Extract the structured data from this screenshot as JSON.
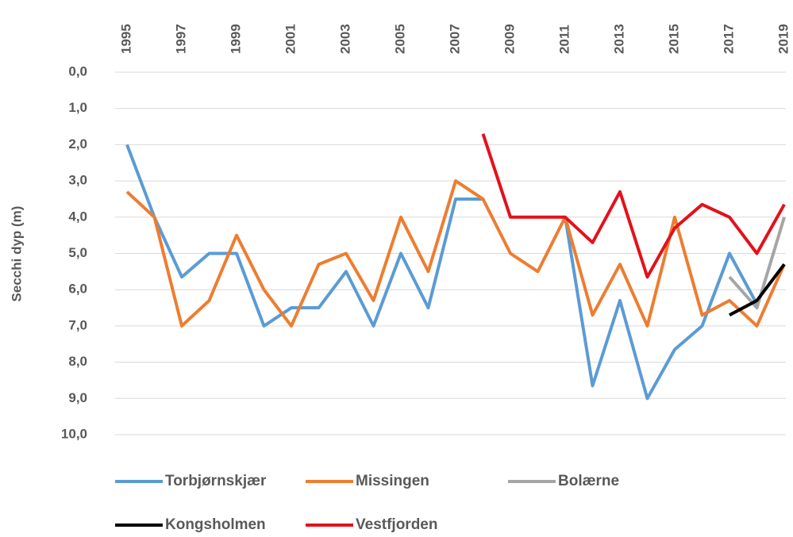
{
  "chart_data": {
    "type": "line",
    "y_label": "Secchi dyp (m)",
    "x": [
      1995,
      1996,
      1997,
      1998,
      1999,
      2000,
      2001,
      2002,
      2003,
      2004,
      2005,
      2006,
      2007,
      2008,
      2009,
      2010,
      2011,
      2012,
      2013,
      2014,
      2015,
      2016,
      2017,
      2018,
      2019
    ],
    "xlim": [
      1995,
      2019
    ],
    "xticks": [
      1995,
      1997,
      1999,
      2001,
      2003,
      2005,
      2007,
      2009,
      2011,
      2013,
      2015,
      2017,
      2019
    ],
    "ylim": [
      10,
      0
    ],
    "yticks": [
      {
        "value": 0,
        "label": "0,0"
      },
      {
        "value": 1,
        "label": "1,0"
      },
      {
        "value": 2,
        "label": "2,0"
      },
      {
        "value": 3,
        "label": "3,0"
      },
      {
        "value": 4,
        "label": "4,0"
      },
      {
        "value": 5,
        "label": "5,0"
      },
      {
        "value": 6,
        "label": "6,0"
      },
      {
        "value": 7,
        "label": "7,0"
      },
      {
        "value": 8,
        "label": "8,0"
      },
      {
        "value": 9,
        "label": "9,0"
      },
      {
        "value": 10,
        "label": "10,0"
      }
    ],
    "grid": true,
    "series": [
      {
        "name": "Torbjørnskjær",
        "color": "#5b9bd5",
        "values": [
          2.0,
          4.0,
          5.65,
          5.0,
          5.0,
          7.0,
          6.5,
          6.5,
          5.5,
          7.0,
          5.0,
          6.5,
          3.5,
          3.5,
          null,
          null,
          4.0,
          8.65,
          6.3,
          9.0,
          7.65,
          7.0,
          5.0,
          6.4,
          null
        ]
      },
      {
        "name": "Missingen",
        "color": "#ed7d31",
        "values": [
          3.3,
          4.0,
          7.0,
          6.3,
          4.5,
          6.0,
          7.0,
          5.3,
          5.0,
          6.3,
          4.0,
          5.5,
          3.0,
          3.5,
          5.0,
          5.5,
          4.0,
          6.7,
          5.3,
          7.0,
          4.0,
          6.7,
          6.3,
          7.0,
          5.3
        ]
      },
      {
        "name": "Bolærne",
        "color": "#a5a5a5",
        "values": [
          null,
          null,
          null,
          null,
          null,
          null,
          null,
          null,
          null,
          null,
          null,
          null,
          null,
          null,
          null,
          null,
          null,
          null,
          null,
          null,
          null,
          null,
          5.65,
          6.5,
          4.0
        ]
      },
      {
        "name": "Kongsholmen",
        "color": "#000000",
        "values": [
          null,
          null,
          null,
          null,
          null,
          null,
          null,
          null,
          null,
          null,
          null,
          null,
          null,
          null,
          null,
          null,
          null,
          null,
          null,
          null,
          null,
          null,
          6.7,
          6.3,
          5.3
        ]
      },
      {
        "name": "Vestfjorden",
        "color": "#e3111b",
        "values": [
          null,
          null,
          null,
          null,
          null,
          null,
          null,
          null,
          null,
          null,
          null,
          null,
          null,
          1.7,
          4.0,
          4.0,
          4.0,
          4.7,
          3.3,
          5.65,
          4.3,
          3.65,
          4.0,
          5.0,
          3.65
        ]
      }
    ]
  }
}
